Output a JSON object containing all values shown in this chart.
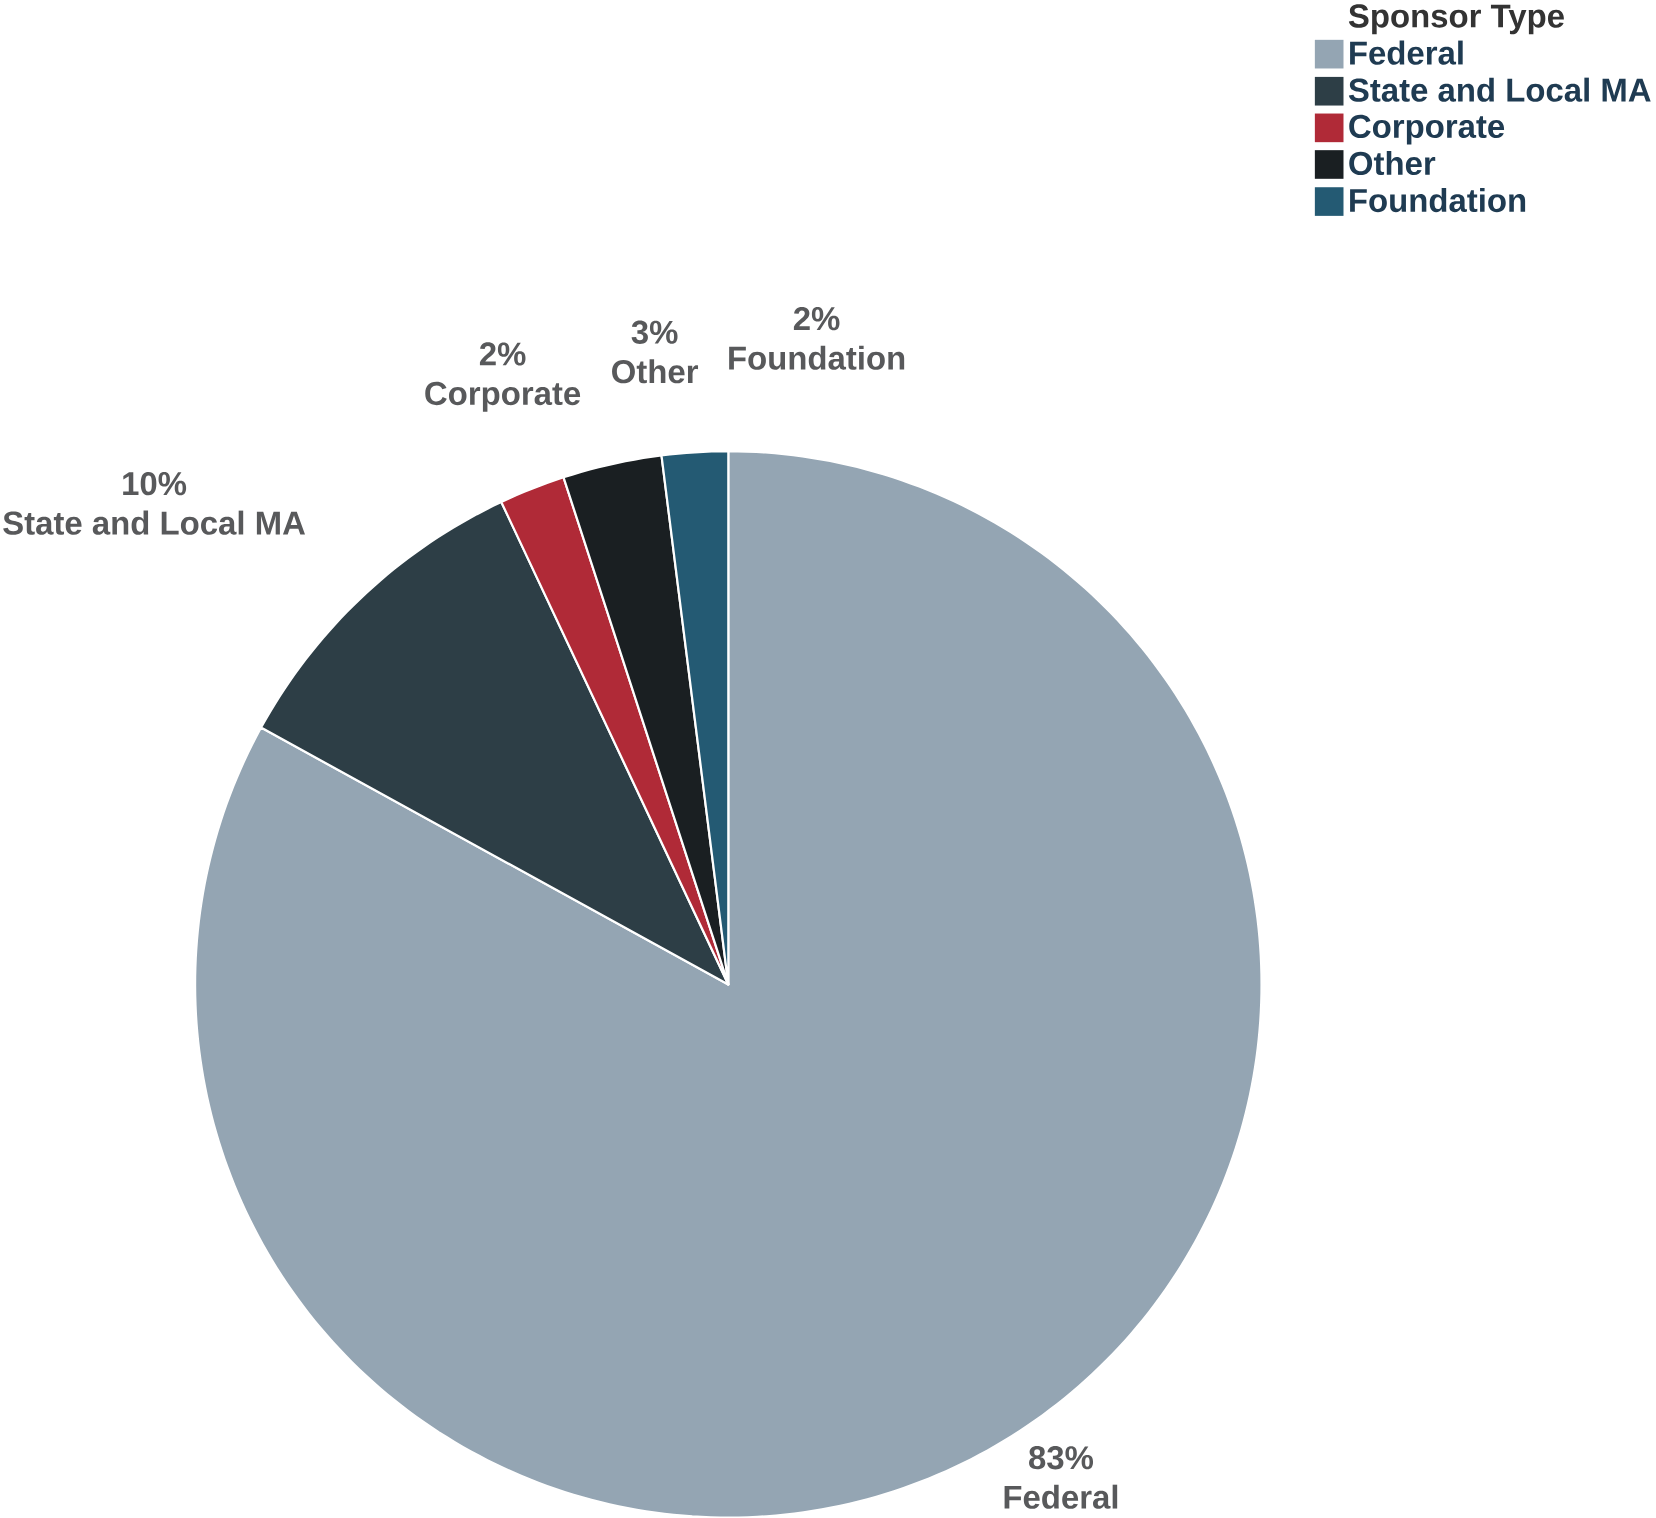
{
  "chart_data": {
    "type": "pie",
    "legend_title": "Sponsor Type",
    "legend": "top right",
    "categories": [
      "Federal",
      "State and Local MA",
      "Corporate",
      "Other",
      "Foundation"
    ],
    "values": [
      83,
      10,
      2,
      3,
      2
    ],
    "value_labels": [
      "83%",
      "10%",
      "2%",
      "3%",
      "2%"
    ],
    "colors": [
      "#94a5b3",
      "#2d3e46",
      "#b02a37",
      "#1a1f22",
      "#245a73"
    ]
  }
}
